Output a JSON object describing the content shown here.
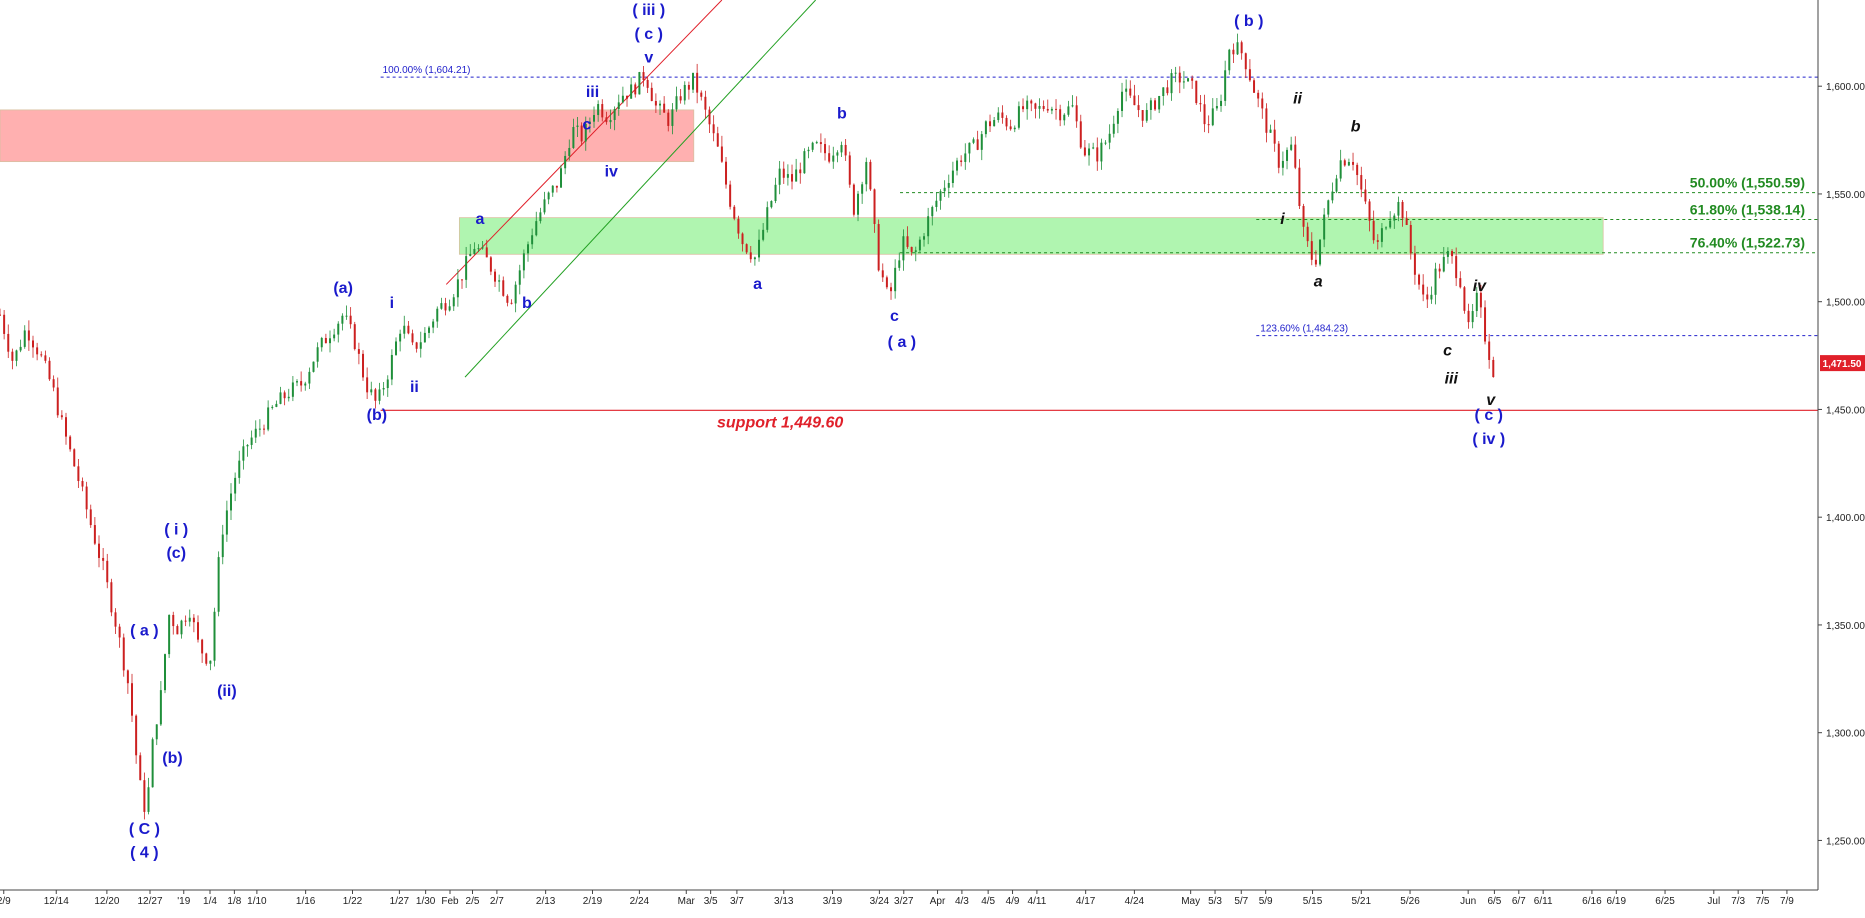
{
  "chart_data": {
    "type": "candlestick",
    "instrument_note": "",
    "y_range": [
      1227,
      1640
    ],
    "x_range": [
      0,
      100
    ],
    "price_ticks": [
      "1,600.00",
      "1,550.00",
      "1,500.00",
      "1,450.00",
      "1,400.00",
      "1,350.00",
      "1,300.00",
      "1,250.00"
    ],
    "price_tick_values": [
      1600,
      1550,
      1500,
      1450,
      1400,
      1350,
      1300,
      1250
    ],
    "date_ticks": [
      {
        "label": "2/9",
        "x": 0.2
      },
      {
        "label": "12/14",
        "x": 3.0
      },
      {
        "label": "12/20",
        "x": 5.7
      },
      {
        "label": "12/27",
        "x": 8.0
      },
      {
        "label": "'19",
        "x": 9.8
      },
      {
        "label": "1/4",
        "x": 11.2
      },
      {
        "label": "1/8",
        "x": 12.5
      },
      {
        "label": "1/10",
        "x": 13.7
      },
      {
        "label": "1/16",
        "x": 16.3
      },
      {
        "label": "1/22",
        "x": 18.8
      },
      {
        "label": "1/27",
        "x": 21.3
      },
      {
        "label": "1/30",
        "x": 22.7
      },
      {
        "label": "Feb",
        "x": 24.0
      },
      {
        "label": "2/5",
        "x": 25.2
      },
      {
        "label": "2/7",
        "x": 26.5
      },
      {
        "label": "2/13",
        "x": 29.1
      },
      {
        "label": "2/19",
        "x": 31.6
      },
      {
        "label": "2/24",
        "x": 34.1
      },
      {
        "label": "Mar",
        "x": 36.6
      },
      {
        "label": "3/5",
        "x": 37.9
      },
      {
        "label": "3/7",
        "x": 39.3
      },
      {
        "label": "3/13",
        "x": 41.8
      },
      {
        "label": "3/19",
        "x": 44.4
      },
      {
        "label": "3/24",
        "x": 46.9
      },
      {
        "label": "3/27",
        "x": 48.2
      },
      {
        "label": "Apr",
        "x": 50.0
      },
      {
        "label": "4/3",
        "x": 51.3
      },
      {
        "label": "4/5",
        "x": 52.7
      },
      {
        "label": "4/9",
        "x": 54.0
      },
      {
        "label": "4/11",
        "x": 55.3
      },
      {
        "label": "4/17",
        "x": 57.9
      },
      {
        "label": "4/24",
        "x": 60.5
      },
      {
        "label": "May",
        "x": 63.5
      },
      {
        "label": "5/3",
        "x": 64.8
      },
      {
        "label": "5/7",
        "x": 66.2
      },
      {
        "label": "5/9",
        "x": 67.5
      },
      {
        "label": "5/15",
        "x": 70.0
      },
      {
        "label": "5/21",
        "x": 72.6
      },
      {
        "label": "5/26",
        "x": 75.2
      },
      {
        "label": "Jun",
        "x": 78.3
      },
      {
        "label": "6/5",
        "x": 79.7
      },
      {
        "label": "6/7",
        "x": 81.0
      },
      {
        "label": "6/11",
        "x": 82.3
      },
      {
        "label": "6/16",
        "x": 84.9
      },
      {
        "label": "6/19",
        "x": 86.2
      },
      {
        "label": "6/25",
        "x": 88.8
      },
      {
        "label": "Jul",
        "x": 91.4
      },
      {
        "label": "7/3",
        "x": 92.7
      },
      {
        "label": "7/5",
        "x": 94.0
      },
      {
        "label": "7/9",
        "x": 95.3
      }
    ],
    "price_path": [
      [
        0,
        1494
      ],
      [
        0.7,
        1472
      ],
      [
        1.4,
        1488
      ],
      [
        2.1,
        1476
      ],
      [
        2.8,
        1460
      ],
      [
        3.4,
        1440
      ],
      [
        4.1,
        1420
      ],
      [
        4.8,
        1398
      ],
      [
        5.5,
        1376
      ],
      [
        6.2,
        1350
      ],
      [
        6.9,
        1320
      ],
      [
        7.4,
        1278
      ],
      [
        7.8,
        1262
      ],
      [
        8.2,
        1300
      ],
      [
        8.6,
        1318
      ],
      [
        9.0,
        1355
      ],
      [
        9.5,
        1348
      ],
      [
        10.1,
        1358
      ],
      [
        10.6,
        1340
      ],
      [
        11.2,
        1333
      ],
      [
        11.8,
        1392
      ],
      [
        12.5,
        1418
      ],
      [
        13.2,
        1434
      ],
      [
        13.9,
        1442
      ],
      [
        14.7,
        1452
      ],
      [
        15.4,
        1458
      ],
      [
        16.1,
        1462
      ],
      [
        16.8,
        1475
      ],
      [
        17.6,
        1486
      ],
      [
        18.3,
        1494
      ],
      [
        18.9,
        1482
      ],
      [
        19.5,
        1462
      ],
      [
        20.1,
        1452
      ],
      [
        20.8,
        1470
      ],
      [
        21.4,
        1490
      ],
      [
        22.0,
        1478
      ],
      [
        22.7,
        1485
      ],
      [
        23.3,
        1496
      ],
      [
        24.0,
        1502
      ],
      [
        24.6,
        1512
      ],
      [
        25.3,
        1526
      ],
      [
        25.9,
        1520
      ],
      [
        26.6,
        1510
      ],
      [
        27.2,
        1500
      ],
      [
        27.9,
        1520
      ],
      [
        28.5,
        1536
      ],
      [
        29.2,
        1548
      ],
      [
        29.8,
        1556
      ],
      [
        30.5,
        1580
      ],
      [
        31.1,
        1576
      ],
      [
        31.8,
        1592
      ],
      [
        32.4,
        1586
      ],
      [
        33.1,
        1596
      ],
      [
        33.7,
        1598
      ],
      [
        34.4,
        1606
      ],
      [
        35.0,
        1590
      ],
      [
        35.7,
        1584
      ],
      [
        36.3,
        1596
      ],
      [
        37.0,
        1603
      ],
      [
        37.6,
        1588
      ],
      [
        38.3,
        1570
      ],
      [
        38.9,
        1548
      ],
      [
        39.6,
        1528
      ],
      [
        40.3,
        1520
      ],
      [
        40.9,
        1540
      ],
      [
        41.6,
        1560
      ],
      [
        42.2,
        1556
      ],
      [
        42.9,
        1566
      ],
      [
        43.5,
        1572
      ],
      [
        44.2,
        1568
      ],
      [
        44.9,
        1576
      ],
      [
        45.5,
        1542
      ],
      [
        46.2,
        1566
      ],
      [
        46.8,
        1520
      ],
      [
        47.4,
        1500
      ],
      [
        48.1,
        1528
      ],
      [
        48.7,
        1520
      ],
      [
        49.4,
        1536
      ],
      [
        50.0,
        1548
      ],
      [
        50.7,
        1560
      ],
      [
        51.3,
        1568
      ],
      [
        52.0,
        1572
      ],
      [
        52.6,
        1582
      ],
      [
        53.3,
        1586
      ],
      [
        53.9,
        1582
      ],
      [
        54.6,
        1590
      ],
      [
        55.2,
        1588
      ],
      [
        55.9,
        1592
      ],
      [
        56.5,
        1588
      ],
      [
        57.2,
        1590
      ],
      [
        57.8,
        1570
      ],
      [
        58.5,
        1568
      ],
      [
        59.1,
        1576
      ],
      [
        59.8,
        1598
      ],
      [
        60.4,
        1592
      ],
      [
        61.1,
        1586
      ],
      [
        61.7,
        1594
      ],
      [
        62.4,
        1602
      ],
      [
        63.0,
        1604
      ],
      [
        63.7,
        1598
      ],
      [
        64.3,
        1582
      ],
      [
        65.0,
        1590
      ],
      [
        65.6,
        1620
      ],
      [
        66.3,
        1615
      ],
      [
        66.9,
        1598
      ],
      [
        67.6,
        1580
      ],
      [
        68.2,
        1565
      ],
      [
        68.9,
        1572
      ],
      [
        69.5,
        1532
      ],
      [
        70.1,
        1517
      ],
      [
        70.8,
        1545
      ],
      [
        71.4,
        1565
      ],
      [
        72.1,
        1568
      ],
      [
        72.7,
        1548
      ],
      [
        73.4,
        1524
      ],
      [
        74.0,
        1540
      ],
      [
        74.7,
        1546
      ],
      [
        75.3,
        1520
      ],
      [
        76.0,
        1498
      ],
      [
        76.6,
        1514
      ],
      [
        77.3,
        1522
      ],
      [
        77.9,
        1510
      ],
      [
        78.3,
        1486
      ],
      [
        78.8,
        1502
      ],
      [
        79.2,
        1484
      ],
      [
        79.7,
        1466
      ]
    ],
    "horizontal_lines": [
      {
        "label": "100.00% (1,604.21)",
        "value": 1604.21,
        "x_start": 20.3,
        "color": "#2222cc"
      },
      {
        "label": "50.00% (1,550.59)",
        "value": 1550.59,
        "x_start": 48.0,
        "color": "#228b22"
      },
      {
        "label": "61.80% (1,538.14)",
        "value": 1538.14,
        "x_start": 67.0,
        "color": "#228b22"
      },
      {
        "label": "76.40% (1,522.73)",
        "value": 1522.73,
        "x_start": 48.0,
        "color": "#228b22"
      },
      {
        "label": "123.60% (1,484.23)",
        "value": 1484.23,
        "x_start": 67.0,
        "color": "#2222cc"
      }
    ],
    "support_line": {
      "label": "support 1,449.60",
      "value": 1449.6,
      "x_start": 20.3,
      "color": "#e0202a"
    },
    "zones": [
      {
        "name": "resistance-zone",
        "y_top": 1589,
        "y_bottom": 1565,
        "x_start": 0,
        "x_end": 37.0,
        "color": "#ffb0b0"
      },
      {
        "name": "support-zone",
        "y_top": 1539,
        "y_bottom": 1522,
        "x_start": 24.5,
        "x_end": 85.5,
        "color": "#b0f5b0"
      }
    ],
    "channel_lines": [
      {
        "name": "channel-upper",
        "color": "#e0202a",
        "from": [
          23.8,
          1508
        ],
        "to": [
          38.5,
          1640
        ]
      },
      {
        "name": "channel-lower",
        "color": "#22a022",
        "from": [
          24.8,
          1465
        ],
        "to": [
          43.5,
          1640
        ]
      }
    ],
    "current_price": {
      "label": "1,471.50",
      "value": 1471.5
    },
    "wave_labels": [
      {
        "text": "( iii )",
        "x": 34.6,
        "price": 1633,
        "style": "blue"
      },
      {
        "text": "( c )",
        "x": 34.6,
        "price": 1622,
        "style": "blue"
      },
      {
        "text": "v",
        "x": 34.6,
        "price": 1611,
        "style": "blue"
      },
      {
        "text": "iii",
        "x": 31.6,
        "price": 1595,
        "style": "blue"
      },
      {
        "text": "c",
        "x": 31.3,
        "price": 1580,
        "style": "blue"
      },
      {
        "text": "iv",
        "x": 32.6,
        "price": 1558,
        "style": "blue"
      },
      {
        "text": "a",
        "x": 25.6,
        "price": 1536,
        "style": "blue"
      },
      {
        "text": "b",
        "x": 28.1,
        "price": 1497,
        "style": "blue"
      },
      {
        "text": "(a)",
        "x": 18.3,
        "price": 1504,
        "style": "blue"
      },
      {
        "text": "i",
        "x": 20.9,
        "price": 1497,
        "style": "blue"
      },
      {
        "text": "ii",
        "x": 22.1,
        "price": 1458,
        "style": "blue"
      },
      {
        "text": "(b)",
        "x": 20.1,
        "price": 1445,
        "style": "blue"
      },
      {
        "text": "a",
        "x": 40.4,
        "price": 1506,
        "style": "blue"
      },
      {
        "text": "b",
        "x": 44.9,
        "price": 1585,
        "style": "blue"
      },
      {
        "text": "c",
        "x": 47.7,
        "price": 1491,
        "style": "blue"
      },
      {
        "text": "( a )",
        "x": 48.1,
        "price": 1479,
        "style": "blue"
      },
      {
        "text": "( b )",
        "x": 66.6,
        "price": 1628,
        "style": "blue"
      },
      {
        "text": "( i )",
        "x": 9.4,
        "price": 1392,
        "style": "blue"
      },
      {
        "text": "(c)",
        "x": 9.4,
        "price": 1381,
        "style": "blue"
      },
      {
        "text": "( a )",
        "x": 7.7,
        "price": 1345,
        "style": "blue"
      },
      {
        "text": "(ii)",
        "x": 12.1,
        "price": 1317,
        "style": "blue"
      },
      {
        "text": "(b)",
        "x": 9.2,
        "price": 1286,
        "style": "blue"
      },
      {
        "text": "( C )",
        "x": 7.7,
        "price": 1253,
        "style": "blue"
      },
      {
        "text": "( 4 )",
        "x": 7.7,
        "price": 1242,
        "style": "blue"
      },
      {
        "text": "( c )",
        "x": 79.4,
        "price": 1445,
        "style": "blue"
      },
      {
        "text": "( iv )",
        "x": 79.4,
        "price": 1434,
        "style": "blue"
      },
      {
        "text": "ii",
        "x": 69.2,
        "price": 1592,
        "style": "black"
      },
      {
        "text": "b",
        "x": 72.3,
        "price": 1579,
        "style": "black"
      },
      {
        "text": "i",
        "x": 68.4,
        "price": 1536,
        "style": "black"
      },
      {
        "text": "a",
        "x": 70.3,
        "price": 1507,
        "style": "black"
      },
      {
        "text": "iv",
        "x": 78.9,
        "price": 1505,
        "style": "black"
      },
      {
        "text": "c",
        "x": 77.2,
        "price": 1475,
        "style": "black"
      },
      {
        "text": "iii",
        "x": 77.4,
        "price": 1462,
        "style": "black"
      },
      {
        "text": "v",
        "x": 79.5,
        "price": 1452,
        "style": "black"
      }
    ],
    "colors": {
      "up_candle": "#1f8f3a",
      "down_candle": "#cc2020",
      "wick": "#333333",
      "axis": "#444444",
      "blue_label": "#1a1acc",
      "black_label": "#111111",
      "support": "#e0202a",
      "price_tag": "#e0202a"
    }
  }
}
